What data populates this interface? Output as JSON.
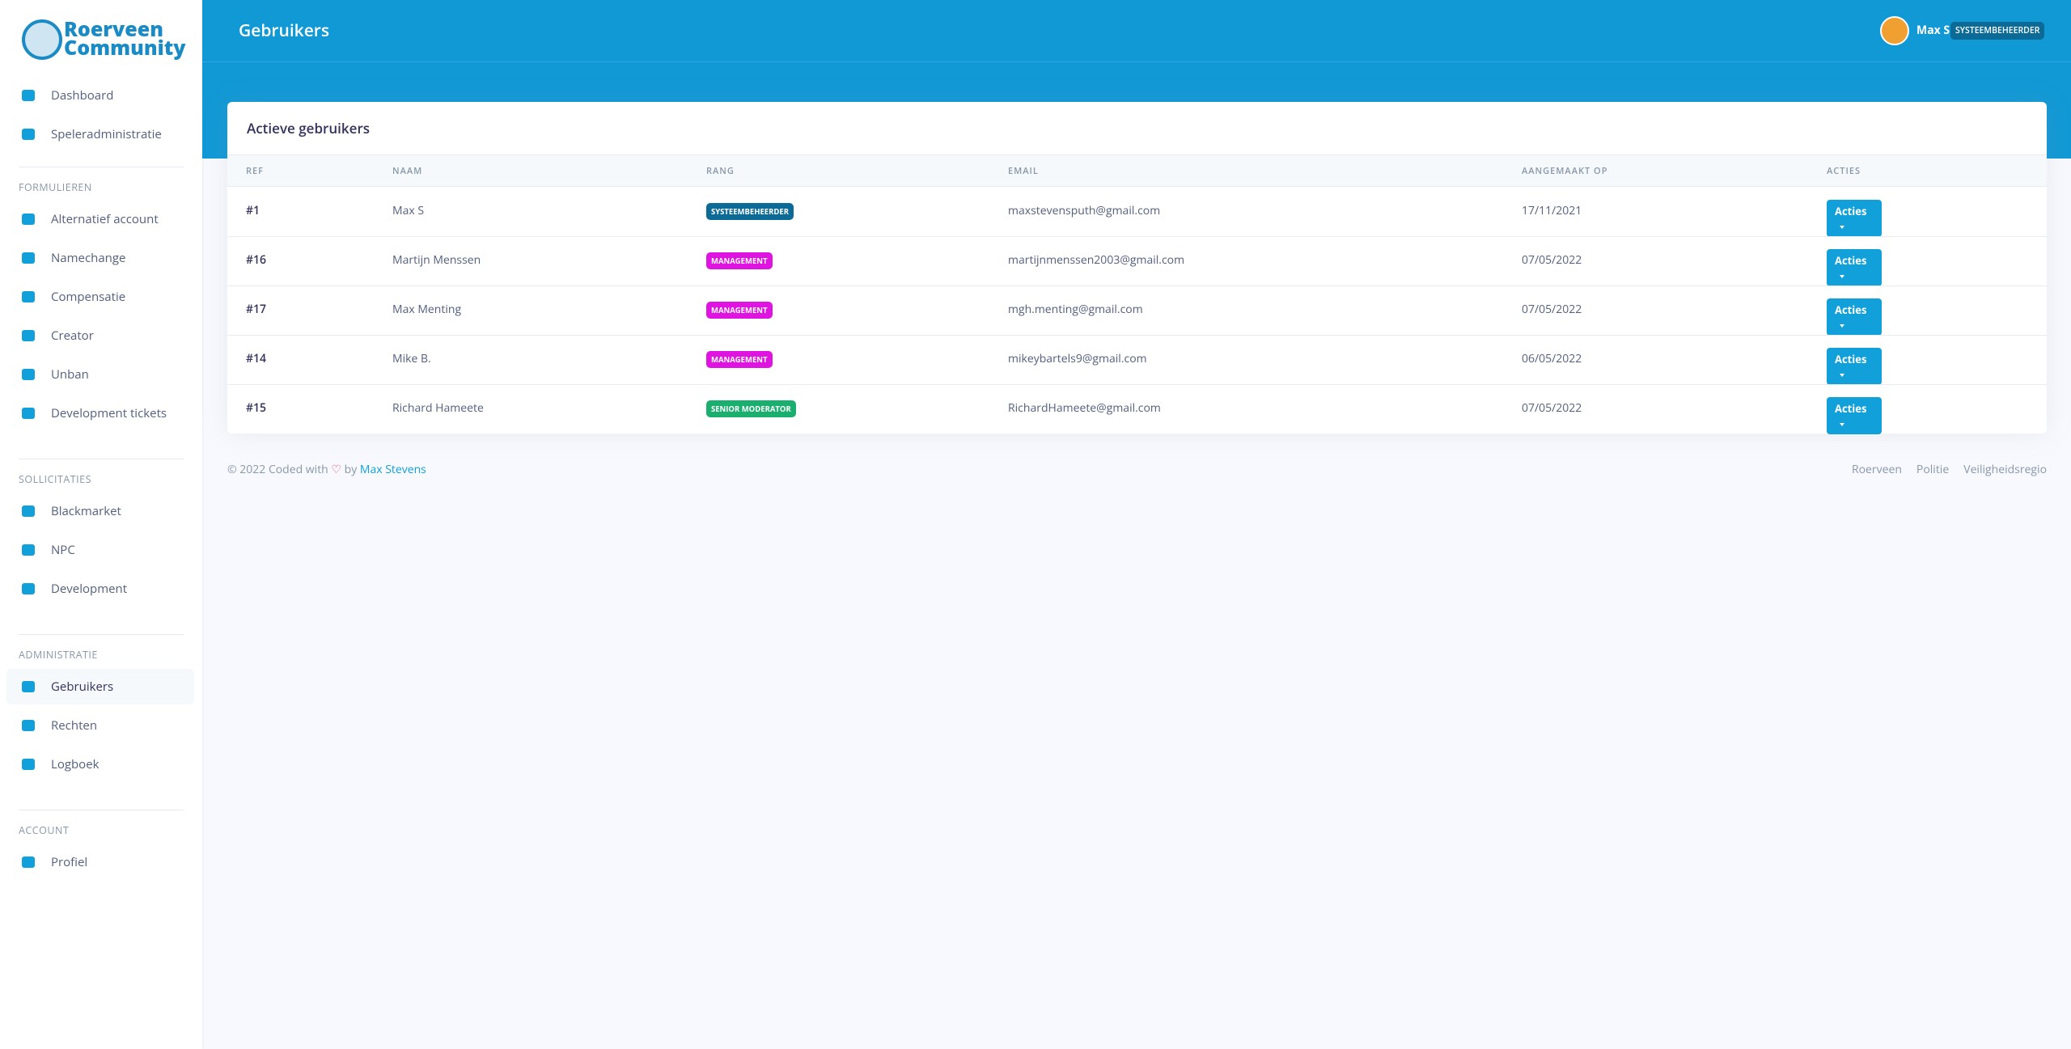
{
  "sidebar": {
    "brand": {
      "line1": "Roerveen",
      "line2": "Community"
    },
    "top_items": [
      "Dashboard",
      "Speleradministratie"
    ],
    "sections": [
      {
        "title": "FORMULIEREN",
        "items": [
          "Alternatief account",
          "Namechange",
          "Compensatie",
          "Creator",
          "Unban",
          "Development tickets"
        ]
      },
      {
        "title": "SOLLICITATIES",
        "items": [
          "Blackmarket",
          "NPC",
          "Development"
        ]
      },
      {
        "title": "ADMINISTRATIE",
        "items": [
          "Gebruikers",
          "Rechten",
          "Logboek"
        ]
      },
      {
        "title": "ACCOUNT",
        "items": [
          "Profiel"
        ]
      }
    ]
  },
  "header": {
    "title": "Gebruikers",
    "user": "Max S",
    "role": "SYSTEEMBEHEERDER"
  },
  "table": {
    "title": "Actieve gebruikers",
    "columns": [
      "REF",
      "NAAM",
      "RANG",
      "EMAIL",
      "AANGEMAAKT OP",
      "ACTIES"
    ],
    "rows": [
      [
        "#1",
        "Max S",
        "SYSTEEMBEHEERDER",
        "maxstevensputh@gmail.com",
        "17/11/2021",
        "Acties"
      ],
      [
        "#16",
        "Martijn Menssen",
        "MANAGEMENT",
        "martijnmenssen2003@gmail.com",
        "07/05/2022",
        "Acties"
      ],
      [
        "#17",
        "Max Menting",
        "MANAGEMENT",
        "mgh.menting@gmail.com",
        "07/05/2022",
        "Acties"
      ],
      [
        "#14",
        "Mike B.",
        "MANAGEMENT",
        "mikeybartels9@gmail.com",
        "06/05/2022",
        "Acties"
      ],
      [
        "#15",
        "Richard Hameete",
        "SENIOR MODERATOR",
        "RichardHameete@gmail.com",
        "07/05/2022",
        "Acties"
      ]
    ]
  },
  "footer": {
    "copyright": "© 2022 Coded with",
    "by": "by",
    "author": "Max Stevens",
    "links": [
      "Roerveen",
      "Politie",
      "Veiligheidsregio"
    ]
  }
}
